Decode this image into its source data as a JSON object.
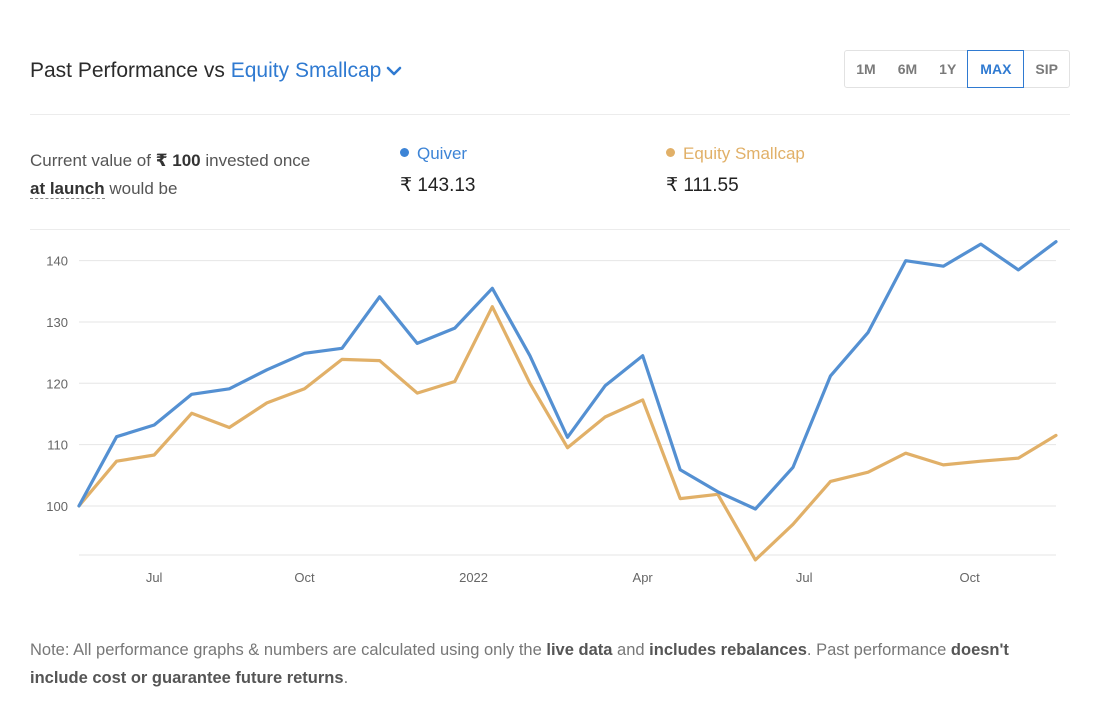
{
  "header": {
    "title_prefix": "Past Performance vs",
    "benchmark": "Equity Smallcap",
    "periods": [
      "1M",
      "6M",
      "1Y",
      "MAX",
      "SIP"
    ],
    "active_period": "MAX"
  },
  "invest": {
    "text1": "Current value of",
    "amount": "₹ 100",
    "text2": "invested once",
    "launch": "at launch",
    "text3": "would be"
  },
  "legend": {
    "quiver": {
      "name": "Quiver",
      "value": "₹ 143.13"
    },
    "smallcap": {
      "name": "Equity Smallcap",
      "value": "₹ 111.55"
    }
  },
  "colors": {
    "quiver": "#5490d2",
    "smallcap": "#e1b068",
    "accent": "#2f7ad1",
    "grid": "#e6e6e6"
  },
  "chart_data": {
    "type": "line",
    "ylim": [
      92,
      145
    ],
    "yticks": [
      100,
      110,
      120,
      130,
      140
    ],
    "x_tick_labels": [
      {
        "label": "Jul",
        "index": 2
      },
      {
        "label": "Oct",
        "index": 6
      },
      {
        "label": "2022",
        "index": 10.5
      },
      {
        "label": "Apr",
        "index": 15
      },
      {
        "label": "Jul",
        "index": 19.3
      },
      {
        "label": "Oct",
        "index": 23.7
      }
    ],
    "series": [
      {
        "name": "Quiver",
        "values": [
          100,
          111.3,
          113.2,
          118.2,
          119.1,
          122.2,
          124.9,
          125.7,
          134.1,
          126.5,
          129.0,
          135.5,
          124.5,
          111.2,
          119.6,
          124.5,
          105.9,
          102.3,
          99.5,
          106.3,
          121.2,
          128.3,
          140.0,
          139.1,
          142.7,
          138.5,
          143.1
        ]
      },
      {
        "name": "Equity Smallcap",
        "values": [
          100,
          107.3,
          108.3,
          115.1,
          112.8,
          116.8,
          119.1,
          123.9,
          123.7,
          118.4,
          120.3,
          132.5,
          120.0,
          109.5,
          114.5,
          117.3,
          101.2,
          101.9,
          91.2,
          97.0,
          104.0,
          105.5,
          108.6,
          106.7,
          107.3,
          107.8,
          111.5
        ]
      }
    ]
  },
  "note": {
    "t1": "Note: All performance graphs & numbers are calculated using only the",
    "b1": "live data",
    "t2": "and",
    "b2": "includes rebalances",
    "t3": ". Past performance",
    "b3": "doesn't include cost or guarantee future returns",
    "t4": "."
  }
}
